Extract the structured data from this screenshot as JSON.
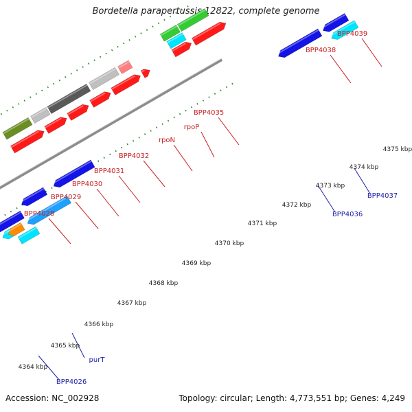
{
  "title": "Bordetella parapertussis 12822, complete genome",
  "footer": {
    "accession": "Accession: NC_002928",
    "summary": "Topology: circular; Length: 4,773,551 bp; Genes: 4,249"
  },
  "axis": {
    "unit": "kbp",
    "ticks": [
      "4364 kbp",
      "4365 kbp",
      "4366 kbp",
      "4367 kbp",
      "4368 kbp",
      "4369 kbp",
      "4370 kbp",
      "4371 kbp",
      "4372 kbp",
      "4373 kbp",
      "4374 kbp",
      "4375 kbp"
    ]
  },
  "upper_labels": [
    "BPP4028",
    "BPP4029",
    "BPP4030",
    "BPP4031",
    "BPP4032",
    "rpoN",
    "rpoP",
    "BPP4035",
    "BPP4038",
    "BPP4039"
  ],
  "lower_labels": [
    "BPP4026",
    "purT",
    "BPP4036",
    "BPP4037"
  ],
  "colors": {
    "label_upper": "#c81e1e",
    "label_lower": "#1e1ea8",
    "cds": "#ff1a1a",
    "backbone": "#8c8c8c",
    "tick": "#2a8a2a",
    "olive": "#6b8e23",
    "gray": "#bfbfbf",
    "dark_gray": "#595959",
    "light_red": "#ff8080",
    "green": "#33cc33",
    "blue": "#1414e6",
    "cyan": "#00e5ff",
    "sky": "#1ea0ff",
    "orange": "#ff8c00"
  }
}
